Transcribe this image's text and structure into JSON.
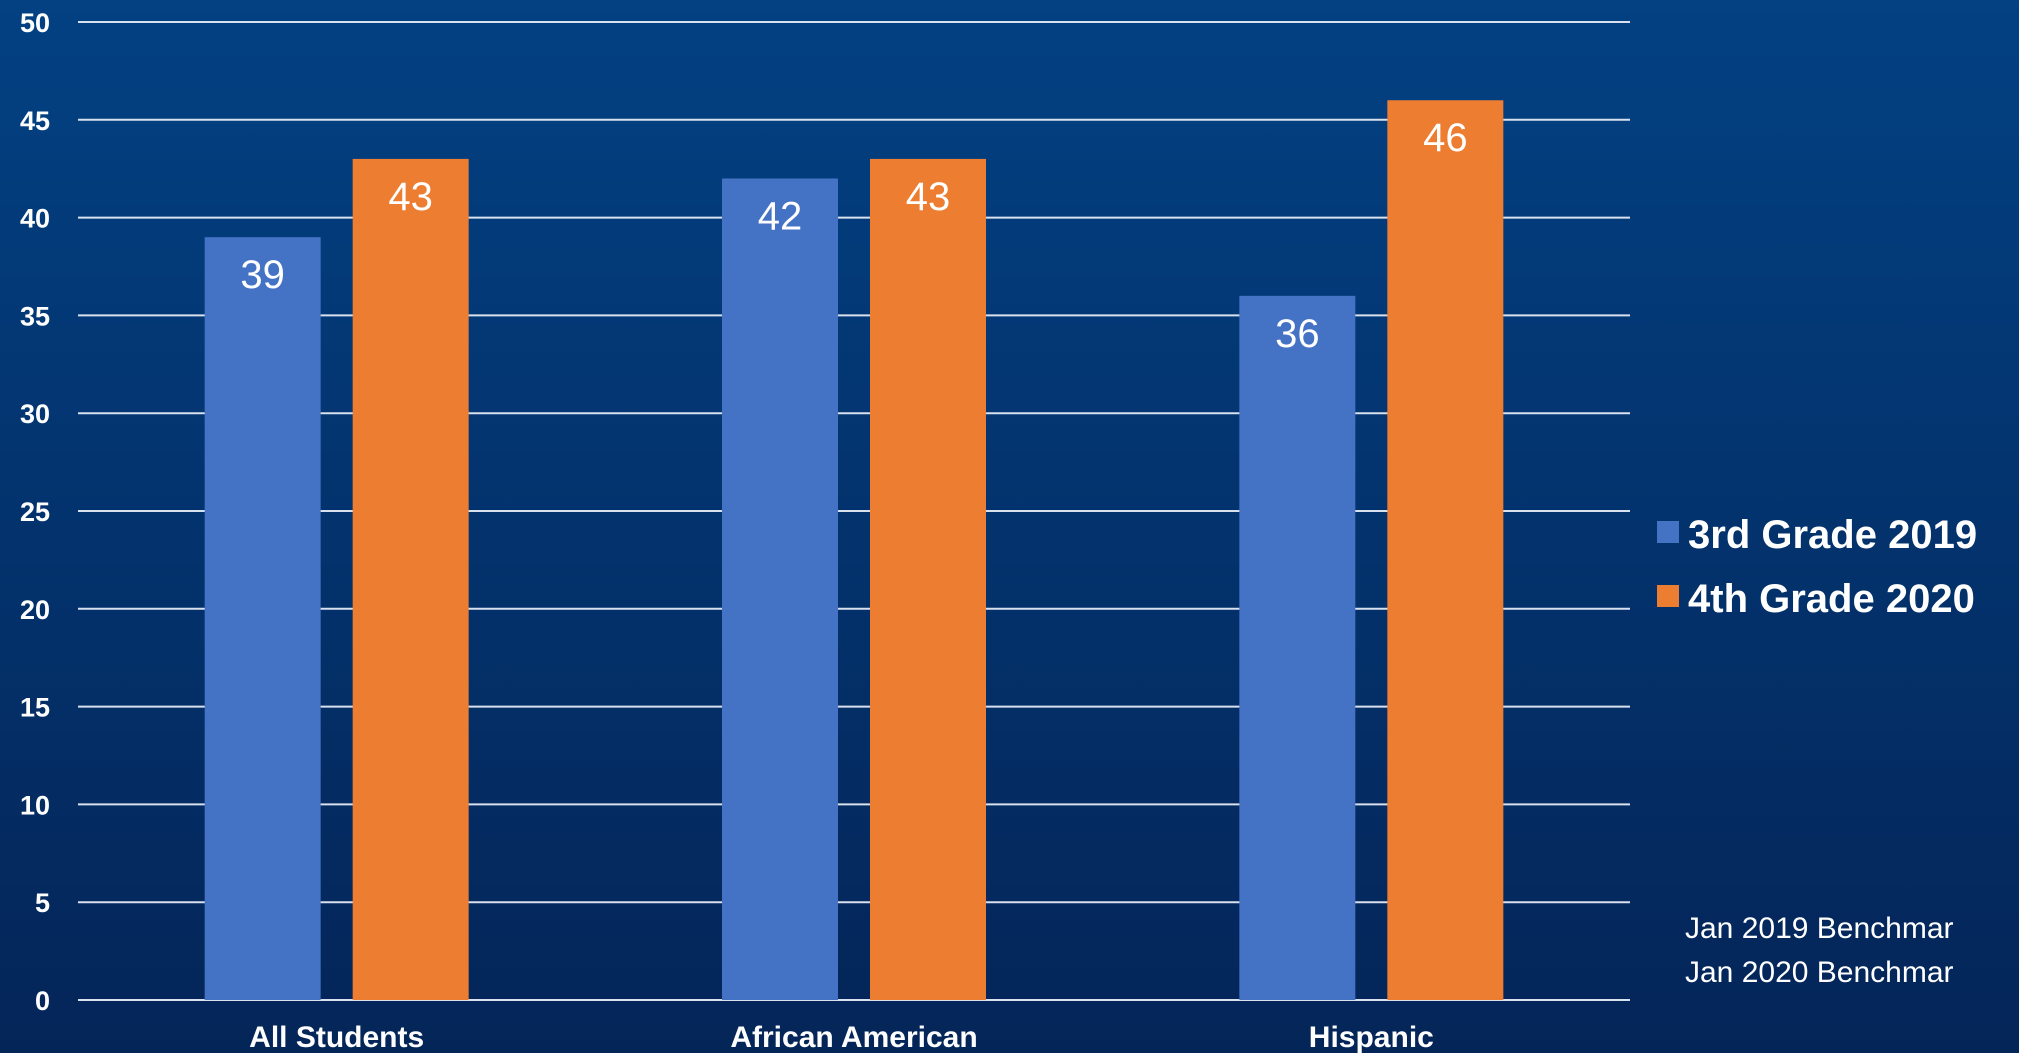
{
  "colors": {
    "background_top": "#034183",
    "background_bottom": "#042558",
    "gridline": "#d9e1ee",
    "text": "#ffffff"
  },
  "chart_data": {
    "type": "bar",
    "title": "",
    "xlabel": "",
    "ylabel": "",
    "categories": [
      "All Students",
      "African American",
      "Hispanic"
    ],
    "series": [
      {
        "name": "3rd Grade 2019",
        "color": "#4472c4",
        "values": [
          39,
          42,
          36
        ]
      },
      {
        "name": "4th Grade 2020",
        "color": "#ed7d31",
        "values": [
          43,
          43,
          46
        ]
      }
    ],
    "ylim": [
      0,
      50
    ],
    "yticks": [
      0,
      5,
      10,
      15,
      20,
      25,
      30,
      35,
      40,
      45,
      50
    ],
    "grid": true,
    "legend_position": "right",
    "data_labels": true
  },
  "notes": [
    "Jan 2019 Benchmar",
    "Jan 2020 Benchmar"
  ]
}
